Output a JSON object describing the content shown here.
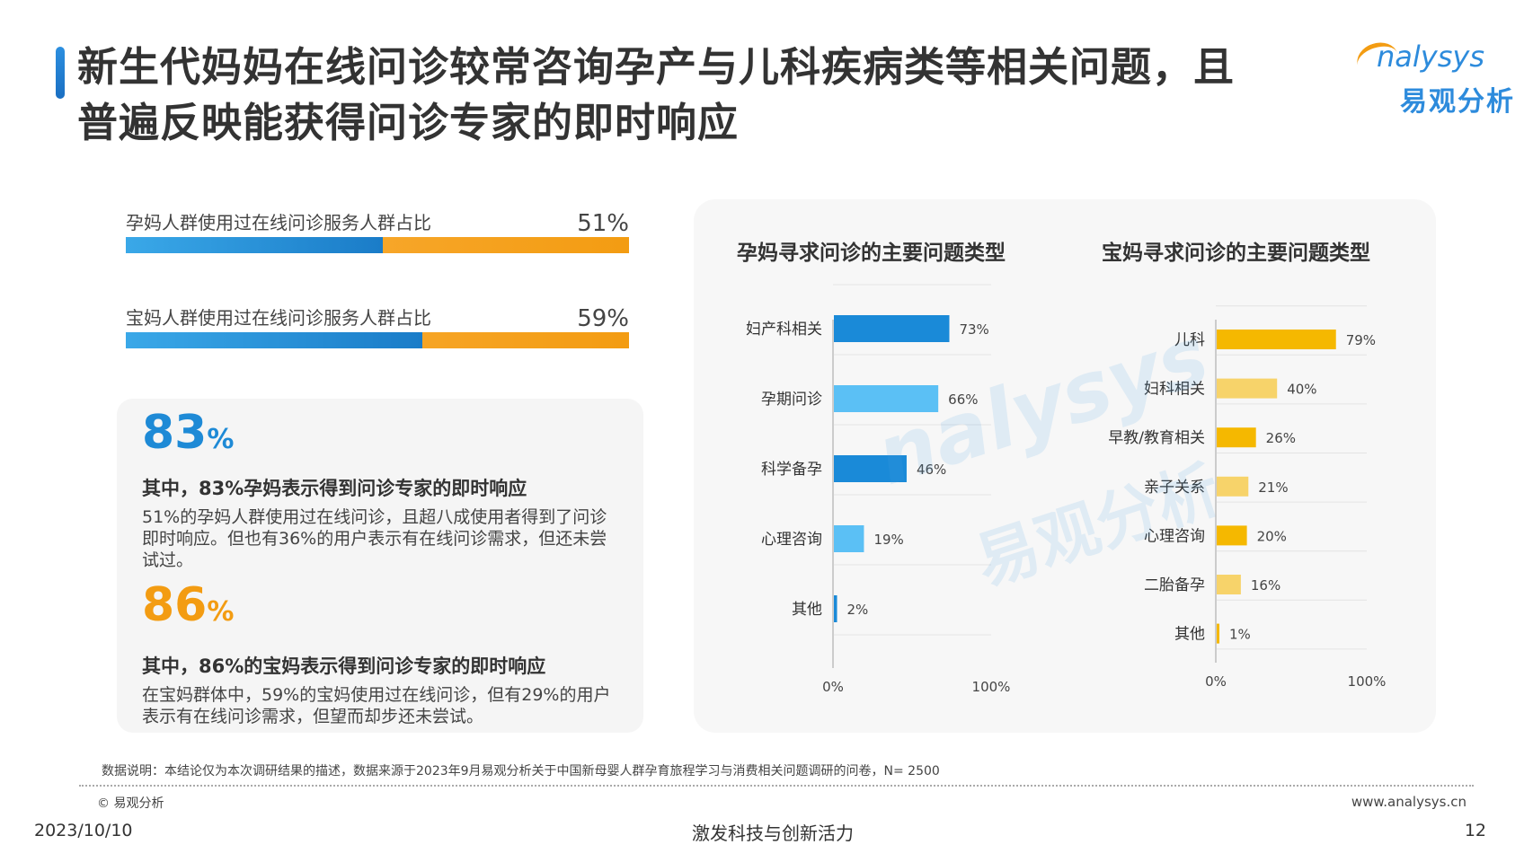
{
  "title": {
    "line1": "新生代妈妈在线问诊较常咨询孕产与儿科疾病类等相关问题，且",
    "line2": "普遍反映能获得问诊专家的即时响应"
  },
  "logo": {
    "en": "nalysys",
    "cn": "易观分析"
  },
  "stats": [
    {
      "label": "孕妈人群使用过在线问诊服务人群占比",
      "pct_text": "51%",
      "value": 0.51
    },
    {
      "label": "宝妈人群使用过在线问诊服务人群占比",
      "pct_text": "59%",
      "value": 0.59
    }
  ],
  "highlights": [
    {
      "num": "83",
      "pct": "%",
      "sub": "其中，83%孕妈表示得到问诊专家的即时响应",
      "desc": "51%的孕妈人群使用过在线问诊，且超八成使用者得到了问诊即时响应。但也有36%的用户表示有在线问诊需求，但还未尝试过。",
      "color": "#1e8ad6"
    },
    {
      "num": "86",
      "pct": "%",
      "sub": "其中，86%的宝妈表示得到问诊专家的即时响应",
      "desc": "在宝妈群体中，59%的宝妈使用过在线问诊，但有29%的用户表示有在线问诊需求，但望而却步还未尝试。",
      "color": "#f39c12"
    }
  ],
  "chart_data": [
    {
      "type": "bar",
      "orientation": "horizontal",
      "title": "孕妈寻求问诊的主要问题类型",
      "categories": [
        "妇产科相关",
        "孕期问诊",
        "科学备孕",
        "心理咨询",
        "其他"
      ],
      "values": [
        73,
        66,
        46,
        19,
        2
      ],
      "value_labels": [
        "73%",
        "66%",
        "46%",
        "19%",
        "2%"
      ],
      "colors": [
        "#1a8ad8",
        "#5bc0f5",
        "#1a8ad8",
        "#5bc0f5",
        "#1a8ad8"
      ],
      "xlim": [
        0,
        100
      ],
      "tick_labels": [
        "0%",
        "100%"
      ]
    },
    {
      "type": "bar",
      "orientation": "horizontal",
      "title": "宝妈寻求问诊的主要问题类型",
      "categories": [
        "儿科",
        "妇科相关",
        "早教/教育相关",
        "亲子关系",
        "心理咨询",
        "二胎备孕",
        "其他"
      ],
      "values": [
        79,
        40,
        26,
        21,
        20,
        16,
        1
      ],
      "value_labels": [
        "79%",
        "40%",
        "26%",
        "21%",
        "20%",
        "16%",
        "1%"
      ],
      "colors": [
        "#f5b800",
        "#f7d36a",
        "#f5b800",
        "#f7d36a",
        "#f5b800",
        "#f7d36a",
        "#f5b800"
      ],
      "xlim": [
        0,
        100
      ],
      "tick_labels": [
        "0%",
        "100%"
      ]
    }
  ],
  "watermark": {
    "en": "nalysys",
    "cn": "易观分析"
  },
  "footer": {
    "note": "数据说明：本结论仅为本次调研结果的描述，数据来源于2023年9月易观分析关于中国新母婴人群孕育旅程学习与消费相关问题调研的问卷，N= 2500",
    "copyright": "© 易观分析",
    "website": "www.analysys.cn",
    "date": "2023/10/10",
    "slogan": "激发科技与创新活力",
    "page": "12"
  }
}
